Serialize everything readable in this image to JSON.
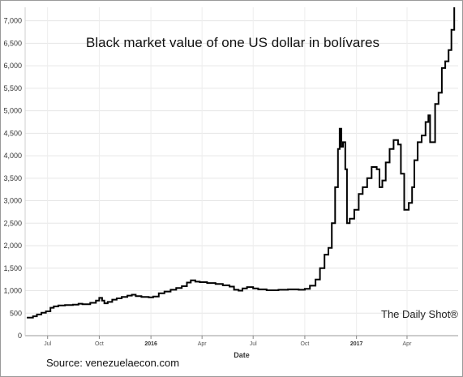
{
  "chart_data": {
    "type": "line",
    "title": "Black market value of one US dollar in bolívares",
    "xlabel": "Date",
    "ylabel": "",
    "ylim": [
      0,
      7300
    ],
    "y_ticks": [
      0,
      500,
      1000,
      1500,
      2000,
      2500,
      3000,
      3500,
      4000,
      4500,
      5000,
      5500,
      6000,
      6500,
      7000
    ],
    "y_tick_labels": [
      "0",
      "500",
      "1,000",
      "1,500",
      "2,000",
      "2,500",
      "3,000",
      "3,500",
      "4,000",
      "4,500",
      "5,000",
      "5,500",
      "6,000",
      "6,500",
      "7,000"
    ],
    "x_ticks": [
      {
        "date": "2015-07-01",
        "label": "Jul",
        "major": false
      },
      {
        "date": "2015-10-01",
        "label": "Oct",
        "major": false
      },
      {
        "date": "2016-01-01",
        "label": "2016",
        "major": true
      },
      {
        "date": "2016-04-01",
        "label": "Apr",
        "major": false
      },
      {
        "date": "2016-07-01",
        "label": "Jul",
        "major": false
      },
      {
        "date": "2016-10-01",
        "label": "Oct",
        "major": false
      },
      {
        "date": "2017-01-01",
        "label": "2017",
        "major": true
      },
      {
        "date": "2017-04-01",
        "label": "Apr",
        "major": false
      }
    ],
    "xlim": [
      "2015-05-22",
      "2017-07-01"
    ],
    "grid": true,
    "series": [
      {
        "color": "#000000",
        "points": [
          [
            "2015-05-25",
            400
          ],
          [
            "2015-06-05",
            430
          ],
          [
            "2015-06-12",
            470
          ],
          [
            "2015-06-20",
            510
          ],
          [
            "2015-06-28",
            540
          ],
          [
            "2015-07-06",
            620
          ],
          [
            "2015-07-12",
            650
          ],
          [
            "2015-07-20",
            670
          ],
          [
            "2015-08-01",
            680
          ],
          [
            "2015-08-15",
            690
          ],
          [
            "2015-08-25",
            710
          ],
          [
            "2015-09-01",
            700
          ],
          [
            "2015-09-15",
            730
          ],
          [
            "2015-09-25",
            780
          ],
          [
            "2015-10-01",
            840
          ],
          [
            "2015-10-06",
            780
          ],
          [
            "2015-10-10",
            720
          ],
          [
            "2015-10-16",
            750
          ],
          [
            "2015-10-24",
            800
          ],
          [
            "2015-11-01",
            830
          ],
          [
            "2015-11-10",
            860
          ],
          [
            "2015-11-20",
            890
          ],
          [
            "2015-11-28",
            910
          ],
          [
            "2015-12-05",
            880
          ],
          [
            "2015-12-15",
            860
          ],
          [
            "2015-12-28",
            850
          ],
          [
            "2016-01-05",
            870
          ],
          [
            "2016-01-15",
            940
          ],
          [
            "2016-01-25",
            980
          ],
          [
            "2016-02-05",
            1020
          ],
          [
            "2016-02-15",
            1060
          ],
          [
            "2016-02-25",
            1100
          ],
          [
            "2016-03-05",
            1180
          ],
          [
            "2016-03-12",
            1230
          ],
          [
            "2016-03-20",
            1200
          ],
          [
            "2016-03-28",
            1190
          ],
          [
            "2016-04-10",
            1170
          ],
          [
            "2016-04-25",
            1150
          ],
          [
            "2016-05-08",
            1120
          ],
          [
            "2016-05-20",
            1090
          ],
          [
            "2016-05-28",
            1020
          ],
          [
            "2016-06-05",
            1000
          ],
          [
            "2016-06-12",
            1050
          ],
          [
            "2016-06-20",
            1080
          ],
          [
            "2016-07-01",
            1050
          ],
          [
            "2016-07-10",
            1030
          ],
          [
            "2016-07-25",
            1010
          ],
          [
            "2016-08-15",
            1020
          ],
          [
            "2016-09-01",
            1030
          ],
          [
            "2016-09-20",
            1020
          ],
          [
            "2016-10-01",
            1040
          ],
          [
            "2016-10-10",
            1110
          ],
          [
            "2016-10-20",
            1250
          ],
          [
            "2016-10-28",
            1500
          ],
          [
            "2016-11-05",
            1800
          ],
          [
            "2016-11-12",
            1950
          ],
          [
            "2016-11-18",
            2500
          ],
          [
            "2016-11-24",
            3300
          ],
          [
            "2016-11-29",
            4150
          ],
          [
            "2016-12-02",
            4600
          ],
          [
            "2016-12-05",
            4200
          ],
          [
            "2016-12-08",
            4300
          ],
          [
            "2016-12-12",
            3700
          ],
          [
            "2016-12-15",
            2500
          ],
          [
            "2016-12-20",
            2600
          ],
          [
            "2016-12-28",
            2800
          ],
          [
            "2017-01-05",
            3150
          ],
          [
            "2017-01-12",
            3300
          ],
          [
            "2017-01-20",
            3500
          ],
          [
            "2017-01-28",
            3750
          ],
          [
            "2017-02-06",
            3700
          ],
          [
            "2017-02-11",
            3300
          ],
          [
            "2017-02-16",
            3450
          ],
          [
            "2017-02-22",
            3850
          ],
          [
            "2017-03-01",
            4150
          ],
          [
            "2017-03-08",
            4350
          ],
          [
            "2017-03-16",
            4250
          ],
          [
            "2017-03-21",
            3600
          ],
          [
            "2017-03-27",
            2800
          ],
          [
            "2017-04-04",
            2950
          ],
          [
            "2017-04-10",
            3300
          ],
          [
            "2017-04-14",
            3900
          ],
          [
            "2017-04-20",
            4300
          ],
          [
            "2017-04-27",
            4450
          ],
          [
            "2017-05-04",
            4750
          ],
          [
            "2017-05-09",
            4900
          ],
          [
            "2017-05-12",
            4300
          ],
          [
            "2017-05-18",
            4300
          ],
          [
            "2017-05-21",
            5150
          ],
          [
            "2017-05-27",
            5400
          ],
          [
            "2017-06-02",
            5950
          ],
          [
            "2017-06-08",
            6100
          ],
          [
            "2017-06-14",
            6350
          ],
          [
            "2017-06-19",
            6800
          ],
          [
            "2017-06-24",
            7300
          ]
        ]
      }
    ]
  },
  "annotations": {
    "brand": "The Daily Shot®",
    "source": "Source: venezuelaecon.com"
  }
}
